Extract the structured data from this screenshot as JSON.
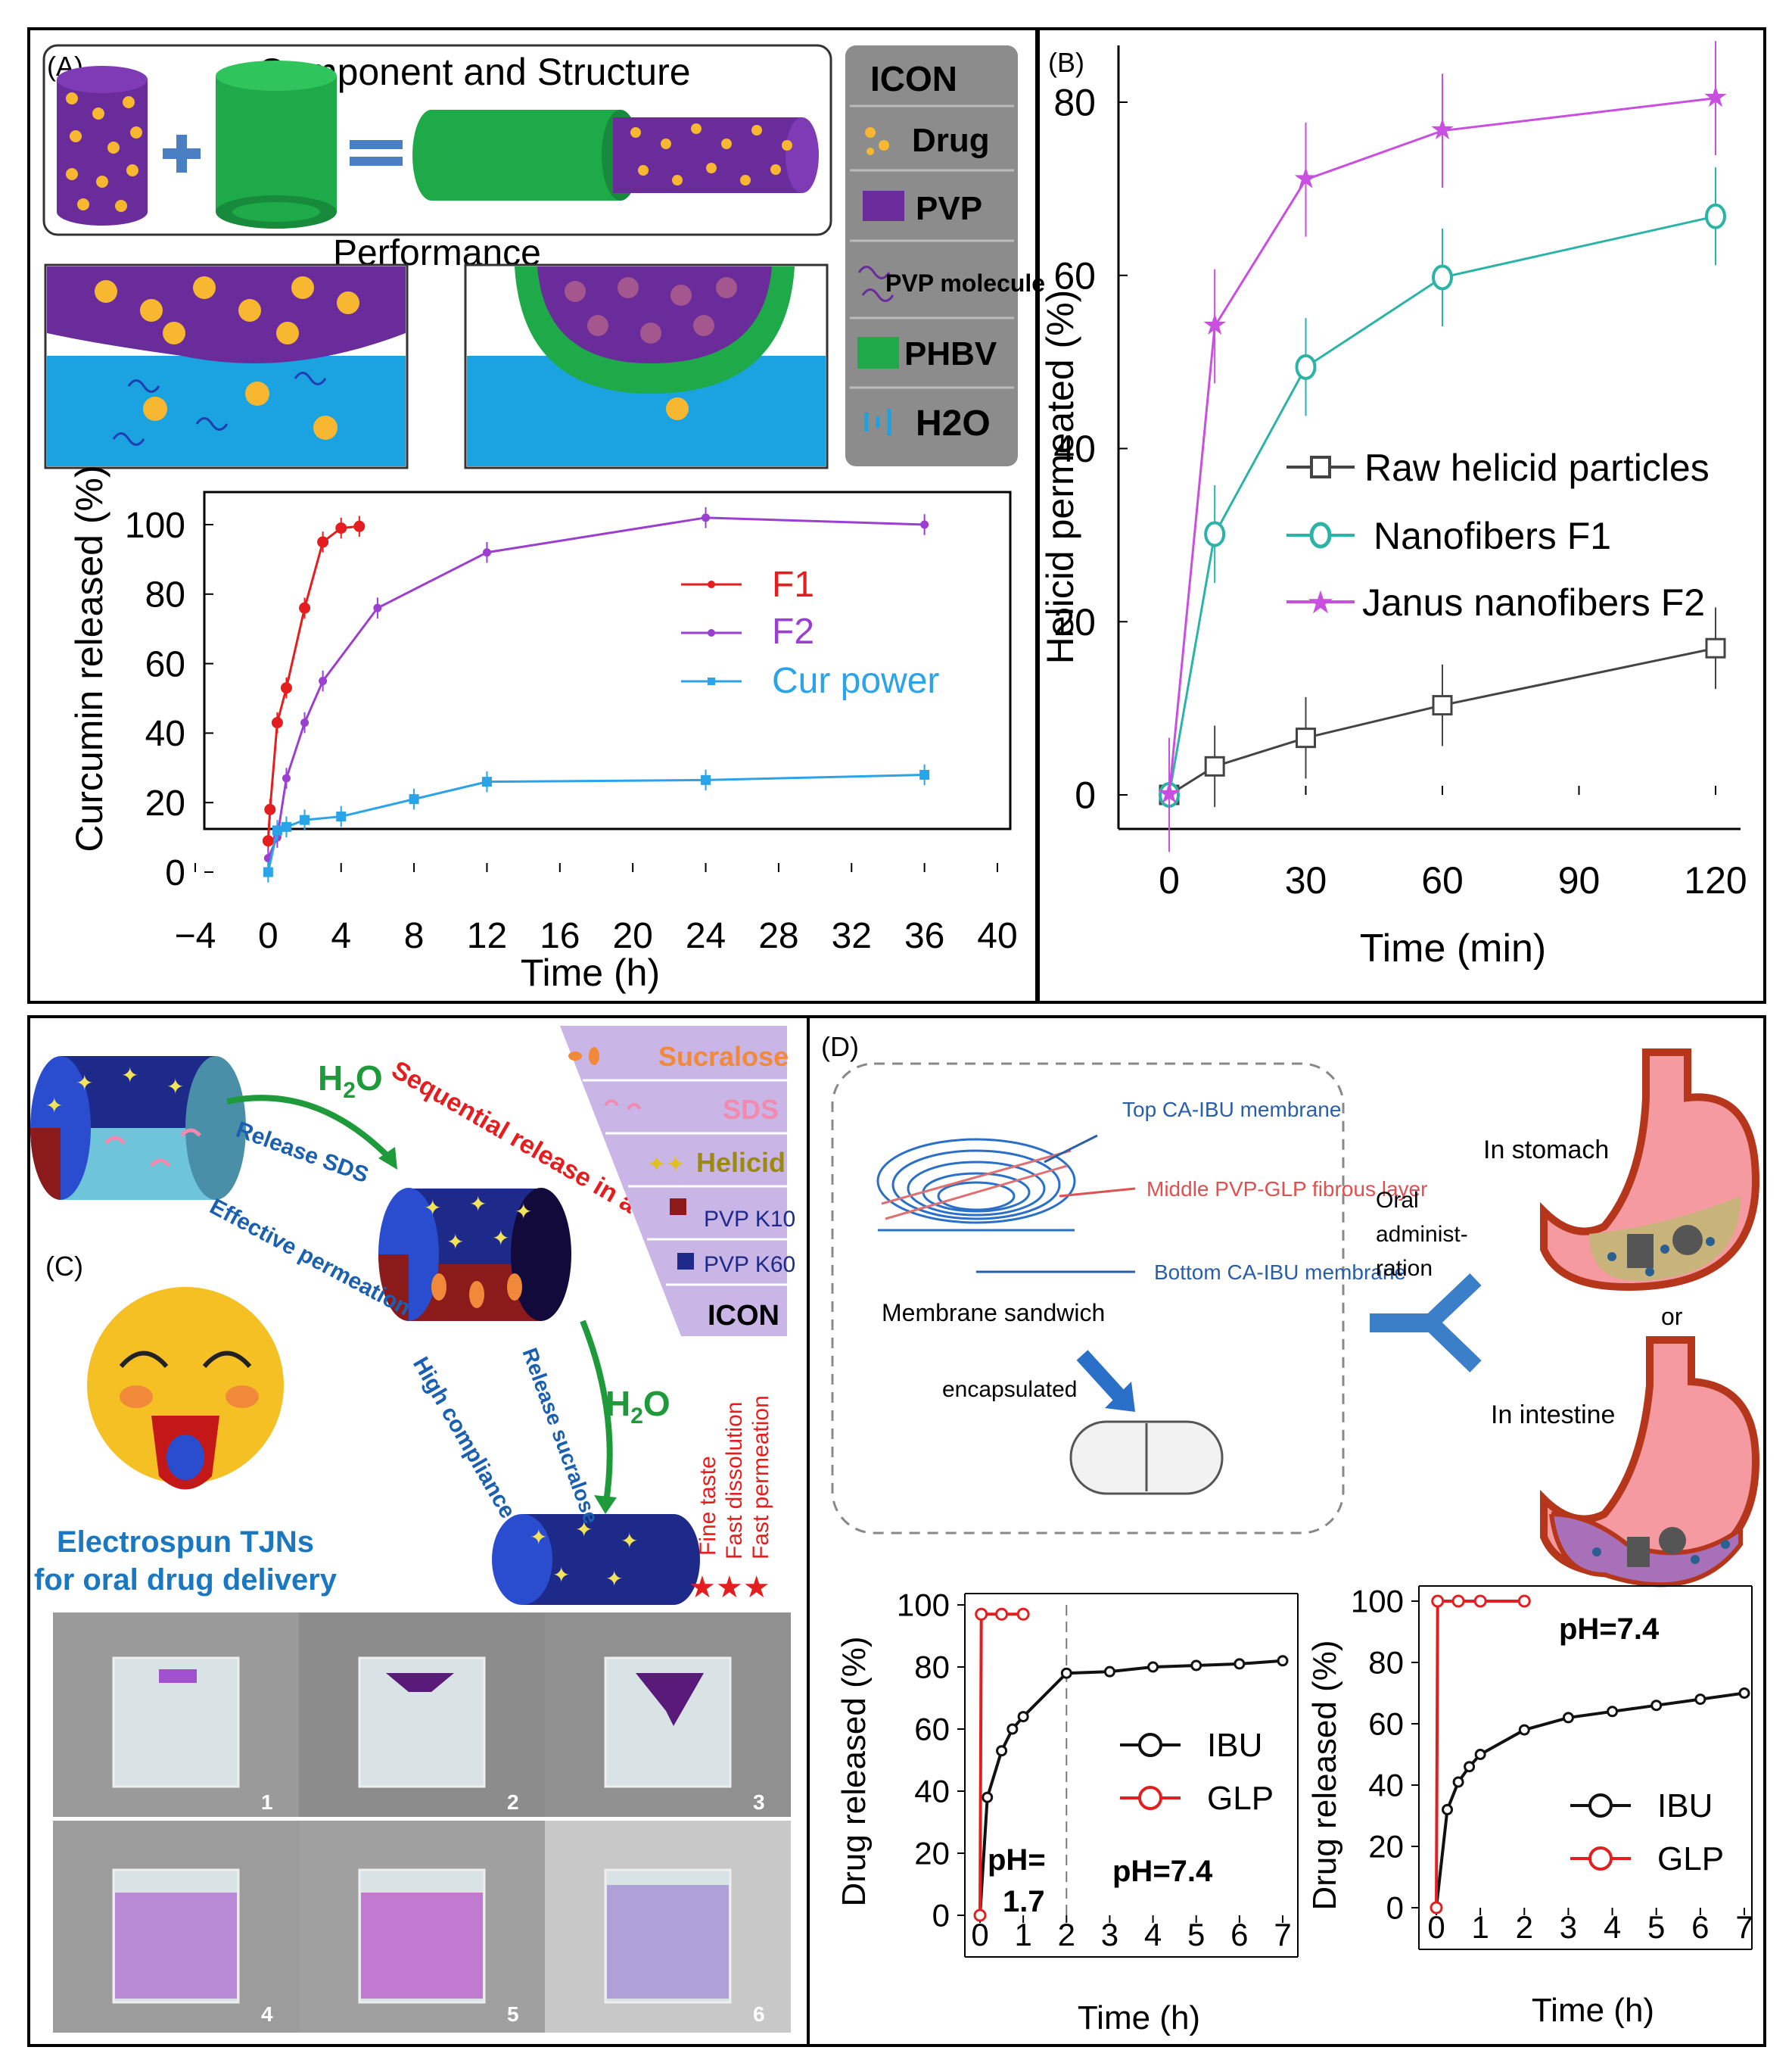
{
  "colors": {
    "drug": "#f7b731",
    "pvp": "#6a2c9a",
    "phbv": "#1faa4a",
    "water": "#1aa3e0",
    "f1": "#e41e1e",
    "f2": "#9b3fd1",
    "cur": "#2ba3e8",
    "raw": "#444444",
    "nano": "#2bb3a8",
    "janus": "#c84fe0",
    "ibu": "#111111",
    "glp": "#e02020"
  },
  "panelA": {
    "label": "(A)",
    "component_title": "Component and Structure",
    "performance_title": "Performance",
    "legend_title": "ICON",
    "legend": [
      {
        "label": "Drug",
        "icon": "drug-dots-icon"
      },
      {
        "label": "PVP",
        "icon": "pvp-square-icon"
      },
      {
        "label": "PVP molecule",
        "icon": "pvp-molecule-icon"
      },
      {
        "label": "PHBV",
        "icon": "phbv-square-icon"
      },
      {
        "label": "H2O",
        "icon": "water-icon"
      }
    ],
    "chart_data": {
      "type": "line",
      "title": "",
      "xlabel": "Time (h)",
      "ylabel": "Curcumin released (%)",
      "xlim": [
        -4,
        40
      ],
      "ylim": [
        0,
        100
      ],
      "xticks": [
        "−4",
        "0",
        "4",
        "8",
        "12",
        "16",
        "20",
        "24",
        "28",
        "32",
        "36",
        "40"
      ],
      "yticks": [
        "0",
        "20",
        "40",
        "60",
        "80",
        "100"
      ],
      "series": [
        {
          "name": "F1",
          "x": [
            0,
            0.1,
            0.5,
            1,
            2,
            3,
            4,
            5
          ],
          "y": [
            9,
            18,
            43,
            53,
            76,
            95,
            99,
            99.5
          ]
        },
        {
          "name": "F2",
          "x": [
            0,
            0.5,
            1,
            2,
            3,
            6,
            12,
            24,
            36
          ],
          "y": [
            4,
            10,
            27,
            43,
            55,
            76,
            92,
            102,
            100
          ]
        },
        {
          "name": "Cur power",
          "x": [
            0,
            0.5,
            1,
            2,
            4,
            8,
            12,
            24,
            36
          ],
          "y": [
            0,
            12,
            13,
            15,
            16,
            21,
            26,
            26.5,
            28
          ]
        }
      ]
    }
  },
  "panelB": {
    "label": "(B)",
    "chart_data": {
      "type": "line",
      "title": "",
      "xlabel": "Time (min)",
      "ylabel": "Helicid permeated (%)",
      "xlim": [
        0,
        120
      ],
      "ylim": [
        0,
        85
      ],
      "xticks": [
        "0",
        "30",
        "60",
        "90",
        "120"
      ],
      "yticks": [
        "0",
        "20",
        "40",
        "60",
        "80"
      ],
      "series": [
        {
          "name": "Raw helicid particles",
          "x": [
            0,
            10,
            30,
            60,
            120
          ],
          "y": [
            0,
            3.5,
            7,
            11,
            18
          ]
        },
        {
          "name": "Nanofibers F1",
          "x": [
            0,
            10,
            30,
            60,
            120
          ],
          "y": [
            0,
            32,
            52.5,
            63.5,
            71
          ]
        },
        {
          "name": "Janus nanofibers F2",
          "x": [
            0,
            10,
            30,
            60,
            120
          ],
          "y": [
            0,
            57.5,
            75.5,
            81.5,
            85.5
          ]
        }
      ]
    }
  },
  "panelC": {
    "label": "(C)",
    "h2o": "H",
    "h2o_sub": "2",
    "h2o_end": "O",
    "sequential": "Sequential release in a fast way",
    "release_sds": "Release SDS",
    "effective": "Effective permeation",
    "high": "High compliance",
    "release_suc": "Release sucralose",
    "legend": [
      "Sucralose",
      "SDS",
      "Helicid",
      "PVP K10",
      "PVP K60",
      "ICON"
    ],
    "props": [
      "Fine taste",
      "Fast dissolution",
      "Fast permeation"
    ],
    "caption1": "Electrospun TJNs",
    "caption2": "for oral drug delivery",
    "photo_nums": [
      "1",
      "2",
      "3",
      "4",
      "5",
      "6"
    ]
  },
  "panelD": {
    "label": "(D)",
    "top": "Top  CA-IBU membrane",
    "middle": "Middle PVP-GLP fibrous layer",
    "bottom": "Bottom CA-IBU membrane",
    "sandwich": "Membrane sandwich",
    "encapsulated": "encapsulated",
    "oral": "Oral administ-ration",
    "stomach": "In stomach",
    "or": "or",
    "intestine": "In intestine",
    "chart_data": [
      {
        "type": "line",
        "xlabel": "Time (h)",
        "ylabel": "Drug released (%)",
        "xlim": [
          0,
          7
        ],
        "ylim": [
          0,
          100
        ],
        "xticks": [
          "0",
          "1",
          "2",
          "3",
          "4",
          "5",
          "6",
          "7"
        ],
        "yticks": [
          "0",
          "20",
          "40",
          "60",
          "80",
          "100"
        ],
        "annotations": [
          "pH=",
          "1.7",
          "pH=7.4"
        ],
        "series": [
          {
            "name": "IBU",
            "x": [
              0,
              0.17,
              0.5,
              0.75,
              1,
              2,
              3,
              4,
              5,
              6,
              7
            ],
            "y": [
              0,
              38,
              53,
              60,
              64,
              78,
              78.5,
              80,
              80.5,
              81,
              82
            ]
          },
          {
            "name": "GLP",
            "x": [
              0,
              0.03,
              0.5,
              1
            ],
            "y": [
              0,
              97,
              97,
              97
            ]
          }
        ]
      },
      {
        "type": "line",
        "xlabel": "Time (h)",
        "ylabel": "Drug released (%)",
        "xlim": [
          0,
          7
        ],
        "ylim": [
          0,
          100
        ],
        "xticks": [
          "0",
          "1",
          "2",
          "3",
          "4",
          "5",
          "6",
          "7"
        ],
        "yticks": [
          "0",
          "20",
          "40",
          "60",
          "80",
          "100"
        ],
        "annotations": [
          "pH=7.4"
        ],
        "series": [
          {
            "name": "IBU",
            "x": [
              0,
              0.25,
              0.5,
              0.75,
              1,
              2,
              3,
              4,
              5,
              6,
              7
            ],
            "y": [
              0,
              32,
              41,
              46,
              50,
              58,
              62,
              64,
              66,
              68,
              70
            ]
          },
          {
            "name": "GLP",
            "x": [
              0,
              0.03,
              0.5,
              1,
              2
            ],
            "y": [
              0,
              100,
              100,
              100,
              100
            ]
          }
        ]
      }
    ]
  }
}
